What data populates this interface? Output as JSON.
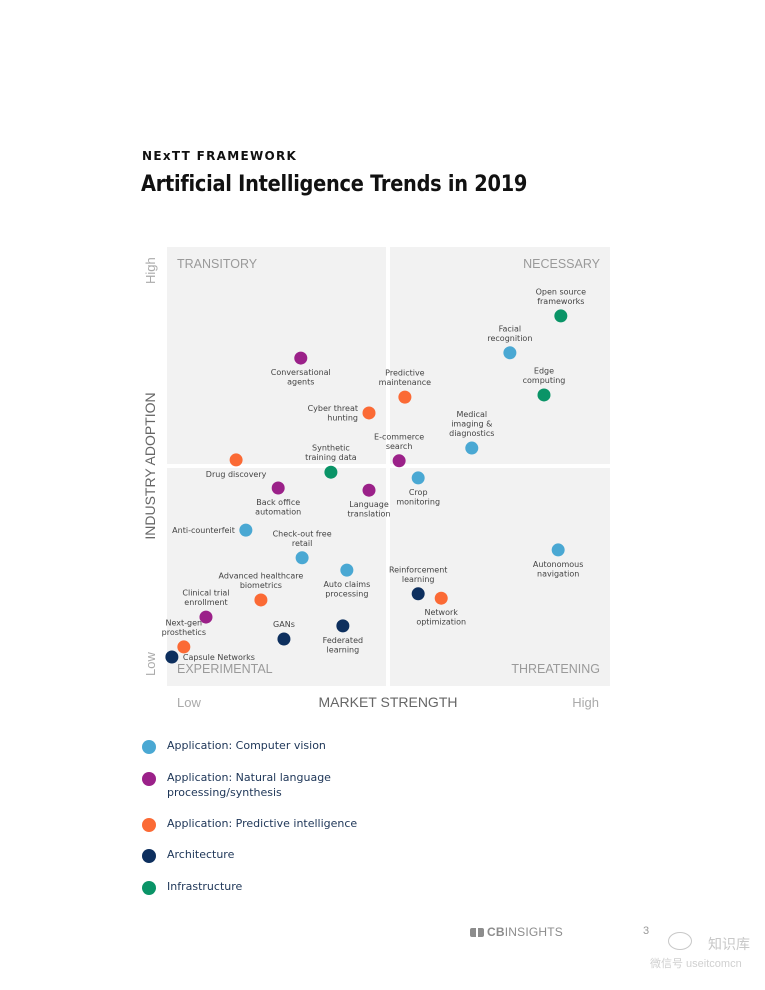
{
  "header": {
    "eyebrow": "NExTT FRAMEWORK",
    "title": "Artificial Intelligence Trends in 2019"
  },
  "chart_data": {
    "type": "scatter",
    "title": "Artificial Intelligence Trends in 2019",
    "xlabel": "MARKET STRENGTH",
    "ylabel": "INDUSTRY ADOPTION",
    "x_ticks": [
      "Low",
      "High"
    ],
    "y_ticks": [
      "Low",
      "High"
    ],
    "xlim": [
      0,
      100
    ],
    "ylim": [
      0,
      100
    ],
    "grid": false,
    "quadrants": {
      "top_left": "TRANSITORY",
      "top_right": "NECESSARY",
      "bottom_left": "EXPERIMENTAL",
      "bottom_right": "THREATENING"
    },
    "categories": [
      {
        "key": "cv",
        "name": "Application: Computer vision",
        "color": "#4aa8d3"
      },
      {
        "key": "nlp",
        "name": "Application: Natural language processing/synthesis",
        "color": "#9b2189"
      },
      {
        "key": "pi",
        "name": "Application: Predictive intelligence",
        "color": "#fb6a35"
      },
      {
        "key": "arch",
        "name": "Architecture",
        "color": "#0d2f5e"
      },
      {
        "key": "infra",
        "name": "Infrastructure",
        "color": "#0a9467"
      }
    ],
    "legend_position": "bottom-left",
    "points": [
      {
        "label": "Open source frameworks",
        "lines": [
          "Open source",
          "frameworks"
        ],
        "category": "infra",
        "x": 88.9,
        "y": 84.3,
        "label_pos": "above"
      },
      {
        "label": "Facial recognition",
        "lines": [
          "Facial",
          "recognition"
        ],
        "category": "cv",
        "x": 77.4,
        "y": 75.9,
        "label_pos": "above"
      },
      {
        "label": "Edge computing",
        "lines": [
          "Edge",
          "computing"
        ],
        "category": "infra",
        "x": 85.1,
        "y": 66.3,
        "label_pos": "above"
      },
      {
        "label": "Predictive maintenance",
        "lines": [
          "Predictive",
          "maintenance"
        ],
        "category": "pi",
        "x": 53.7,
        "y": 65.8,
        "label_pos": "above"
      },
      {
        "label": "Conversational agents",
        "lines": [
          "Conversational",
          "agents"
        ],
        "category": "nlp",
        "x": 30.2,
        "y": 74.7,
        "label_pos": "below"
      },
      {
        "label": "Cyber threat hunting",
        "lines": [
          "Cyber threat",
          "hunting"
        ],
        "category": "pi",
        "x": 45.6,
        "y": 62.2,
        "label_pos": "left"
      },
      {
        "label": "Medical imaging & diagnostics",
        "lines": [
          "Medical",
          "imaging &",
          "diagnostics"
        ],
        "category": "cv",
        "x": 68.8,
        "y": 54.2,
        "label_pos": "above"
      },
      {
        "label": "E-commerce search",
        "lines": [
          "E-commerce",
          "search"
        ],
        "category": "nlp",
        "x": 52.4,
        "y": 51.3,
        "label_pos": "above"
      },
      {
        "label": "Drug discovery",
        "lines": [
          "Drug discovery"
        ],
        "category": "pi",
        "x": 15.6,
        "y": 51.5,
        "label_pos": "below"
      },
      {
        "label": "Synthetic training data",
        "lines": [
          "Synthetic",
          "training data"
        ],
        "category": "infra",
        "x": 37.0,
        "y": 48.7,
        "label_pos": "above"
      },
      {
        "label": "Crop monitoring",
        "lines": [
          "Crop",
          "monitoring"
        ],
        "category": "cv",
        "x": 56.7,
        "y": 47.4,
        "label_pos": "below"
      },
      {
        "label": "Back office automation",
        "lines": [
          "Back office",
          "automation"
        ],
        "category": "nlp",
        "x": 25.1,
        "y": 45.1,
        "label_pos": "below"
      },
      {
        "label": "Language translation",
        "lines": [
          "Language",
          "translation"
        ],
        "category": "nlp",
        "x": 45.6,
        "y": 44.6,
        "label_pos": "below"
      },
      {
        "label": "Anti-counterfeit",
        "lines": [
          "Anti-counterfeit"
        ],
        "category": "cv",
        "x": 17.8,
        "y": 35.5,
        "label_pos": "left"
      },
      {
        "label": "Check-out free retail",
        "lines": [
          "Check-out free",
          "retail"
        ],
        "category": "cv",
        "x": 30.5,
        "y": 29.2,
        "label_pos": "above"
      },
      {
        "label": "Autonomous navigation",
        "lines": [
          "Autonomous",
          "navigation"
        ],
        "category": "cv",
        "x": 88.3,
        "y": 31.0,
        "label_pos": "below"
      },
      {
        "label": "Auto claims processing",
        "lines": [
          "Auto claims",
          "processing"
        ],
        "category": "cv",
        "x": 40.6,
        "y": 26.4,
        "label_pos": "below"
      },
      {
        "label": "Advanced healthcare biometrics",
        "lines": [
          "Advanced healthcare",
          "biometrics"
        ],
        "category": "pi",
        "x": 21.2,
        "y": 19.6,
        "label_pos": "above"
      },
      {
        "label": "Reinforcement learning",
        "lines": [
          "Reinforcement",
          "learning"
        ],
        "category": "arch",
        "x": 56.7,
        "y": 21.0,
        "label_pos": "above"
      },
      {
        "label": "Network optimization",
        "lines": [
          "Network",
          "optimization"
        ],
        "category": "pi",
        "x": 61.9,
        "y": 20.0,
        "label_pos": "below"
      },
      {
        "label": "Clinical trial enrollment",
        "lines": [
          "Clinical trial",
          "enrollment"
        ],
        "category": "nlp",
        "x": 8.8,
        "y": 15.7,
        "label_pos": "above"
      },
      {
        "label": "GANs",
        "lines": [
          "GANs"
        ],
        "category": "arch",
        "x": 26.4,
        "y": 10.7,
        "label_pos": "above"
      },
      {
        "label": "Federated learning",
        "lines": [
          "Federated",
          "learning"
        ],
        "category": "arch",
        "x": 39.7,
        "y": 13.7,
        "label_pos": "below"
      },
      {
        "label": "Next-gen prosthetics",
        "lines": [
          "Next-gen",
          "prosthetics"
        ],
        "category": "pi",
        "x": 3.8,
        "y": 8.9,
        "label_pos": "above"
      },
      {
        "label": "Capsule Networks",
        "lines": [
          "Capsule Networks"
        ],
        "category": "arch",
        "x": 1.1,
        "y": 6.6,
        "label_pos": "right"
      }
    ]
  },
  "legend": {
    "items": [
      {
        "label": "Application: Computer vision",
        "color": "#4aa8d3"
      },
      {
        "label": "Application: Natural language processing/synthesis",
        "color": "#9b2189"
      },
      {
        "label": "Application: Predictive intelligence",
        "color": "#fb6a35"
      },
      {
        "label": "Architecture",
        "color": "#0d2f5e"
      },
      {
        "label": "Infrastructure",
        "color": "#0a9467"
      }
    ]
  },
  "footer": {
    "logo_bold": "CB",
    "logo_rest": "INSIGHTS",
    "page_number": "3",
    "watermark_name": "知识库",
    "watermark_id": "微信号 useitcomcn"
  }
}
